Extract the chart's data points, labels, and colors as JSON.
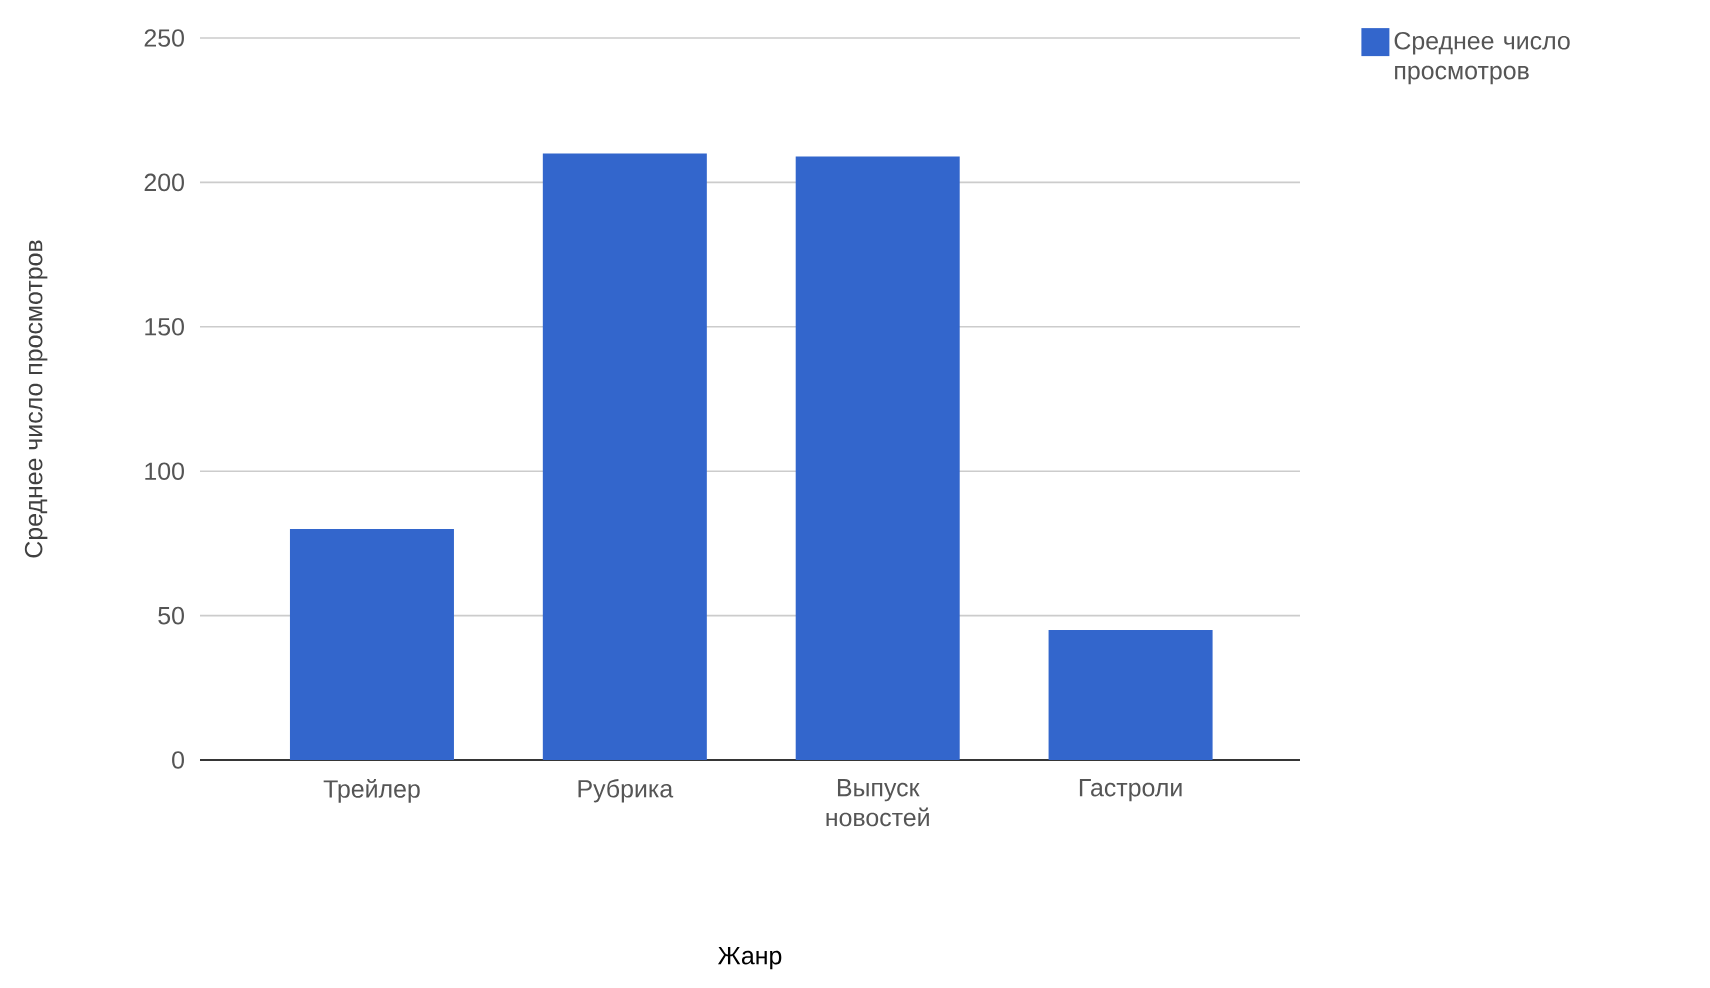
{
  "chart_data": {
    "type": "bar",
    "xlabel": "Жанр",
    "ylabel": "Среднее число просмотров",
    "categories": [
      "Трейлер",
      "Рубрика",
      "Выпуск новостей",
      "Гастроли"
    ],
    "series": [
      {
        "name": "Среднее число просмотров",
        "color": "#3366cc",
        "values": [
          80,
          210,
          209,
          45
        ]
      }
    ],
    "ylim": [
      0,
      250
    ],
    "yticks": [
      0,
      50,
      100,
      150,
      200,
      250
    ],
    "grid": "y",
    "legend": "top right"
  }
}
